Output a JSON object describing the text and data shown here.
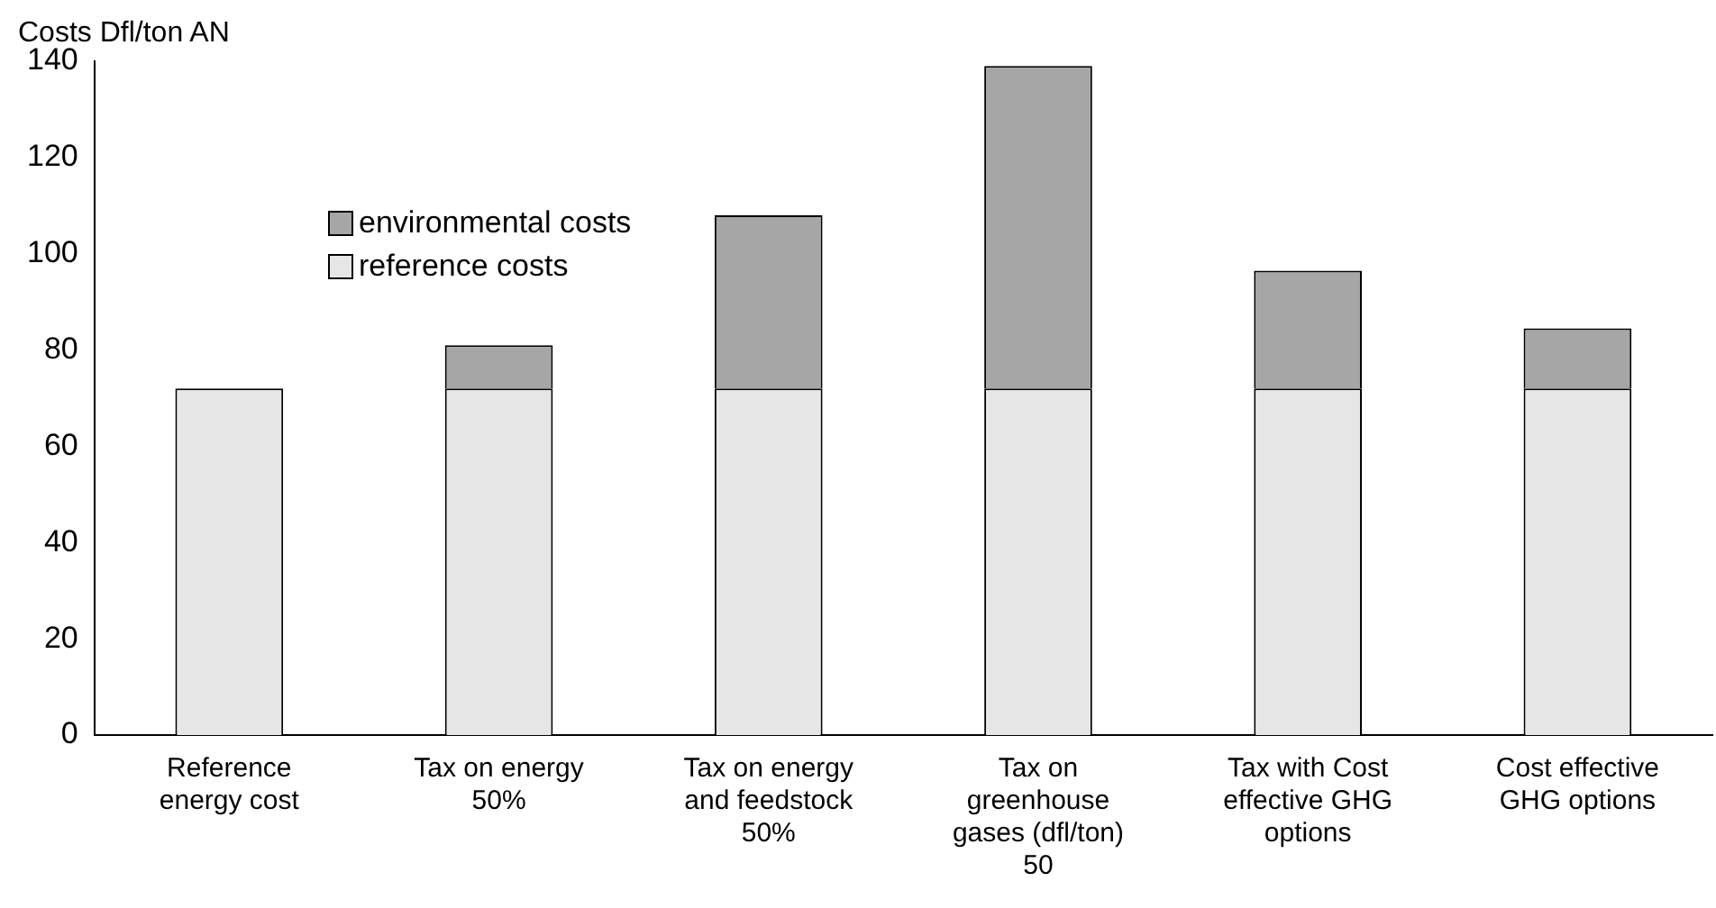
{
  "chart_data": {
    "type": "bar",
    "stacked": true,
    "ylabel": "Costs Dfl/ton AN",
    "categories": [
      "Reference energy cost",
      "Tax on energy 50%",
      "Tax on energy and feedstock 50%",
      "Tax on greenhouse gases (dfl/ton) 50",
      "Tax with Cost effective GHG options",
      "Cost effective GHG options"
    ],
    "series": [
      {
        "name": "reference costs",
        "color": "#e6e6e6",
        "values": [
          72,
          72,
          72,
          72,
          72,
          72
        ]
      },
      {
        "name": "environmental costs",
        "color": "#a6a6a6",
        "values": [
          0,
          9,
          36,
          67,
          24.5,
          12.5
        ]
      }
    ],
    "ylim": [
      0,
      140
    ],
    "yticks": [
      0,
      20,
      40,
      60,
      80,
      100,
      120,
      140
    ],
    "grid": false,
    "legend": "top left"
  }
}
